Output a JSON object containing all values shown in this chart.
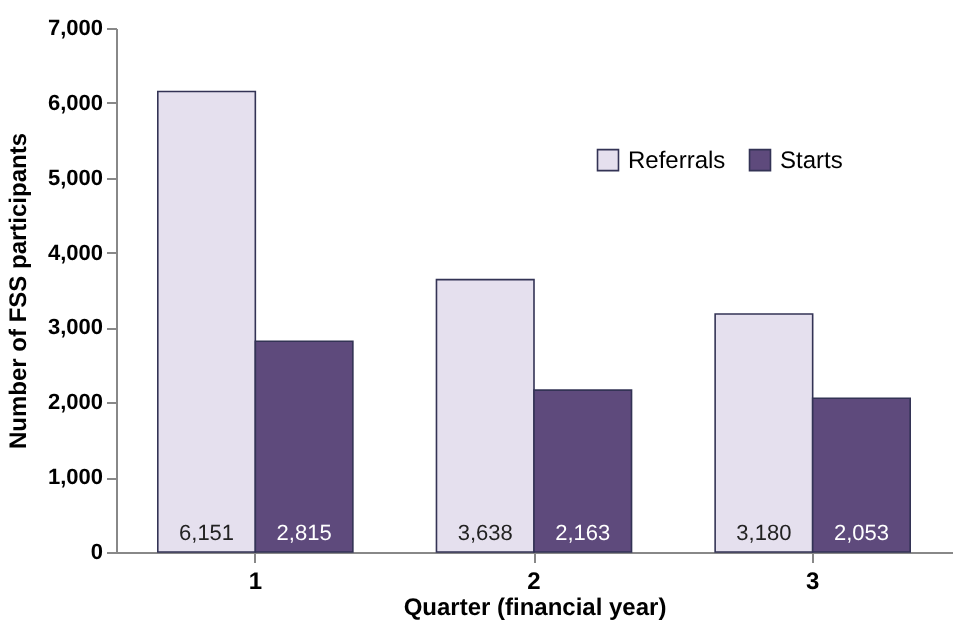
{
  "chart_data": {
    "type": "bar",
    "xlabel": "Quarter (financial year)",
    "ylabel": "Number of FSS participants",
    "categories": [
      "1",
      "2",
      "3"
    ],
    "series": [
      {
        "name": "Referrals",
        "color": "#e5e0ee",
        "values": [
          6151,
          3638,
          3180
        ],
        "value_labels": [
          "6,151",
          "3,638",
          "3,180"
        ]
      },
      {
        "name": "Starts",
        "color": "#5e4a7c",
        "values": [
          2815,
          2163,
          2053
        ],
        "value_labels": [
          "2,815",
          "2,163",
          "2,053"
        ]
      }
    ],
    "ylim": [
      0,
      7000
    ],
    "yticks": [
      {
        "value": 0,
        "label": "0"
      },
      {
        "value": 1000,
        "label": "1,000"
      },
      {
        "value": 2000,
        "label": "2,000"
      },
      {
        "value": 3000,
        "label": "3,000"
      },
      {
        "value": 4000,
        "label": "4,000"
      },
      {
        "value": 5000,
        "label": "5,000"
      },
      {
        "value": 6000,
        "label": "6,000"
      },
      {
        "value": 7000,
        "label": "7,000"
      }
    ],
    "legend": "top right",
    "grid": false
  }
}
